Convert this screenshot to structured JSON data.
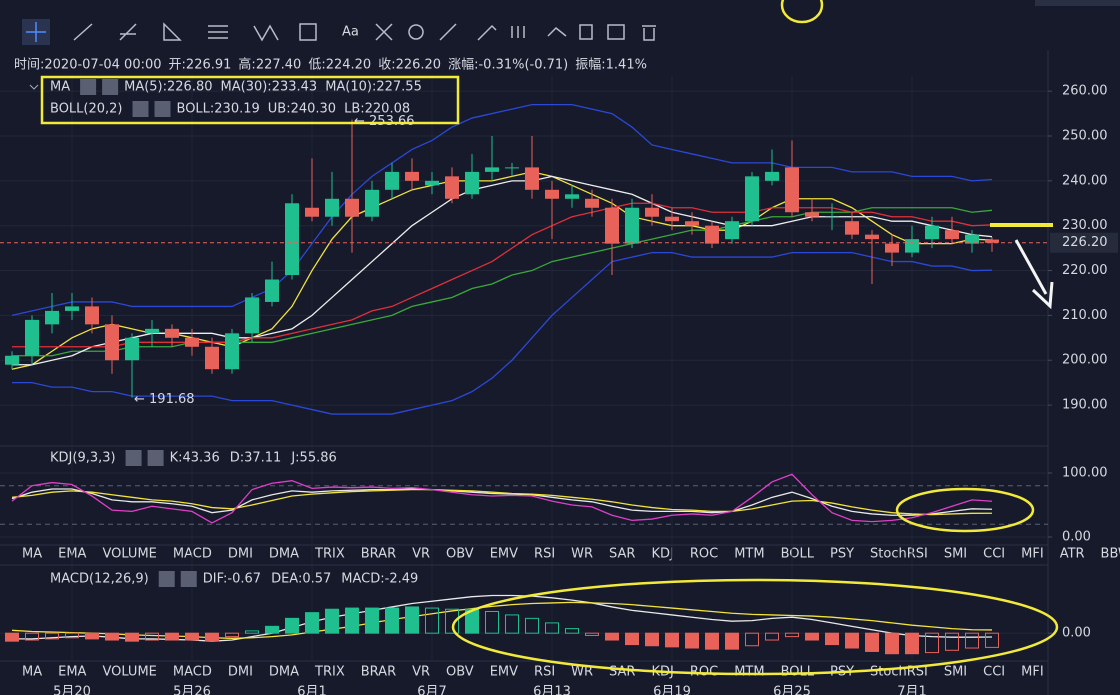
{
  "toolbar": {
    "text_tool": "Aa"
  },
  "info": [
    {
      "label": "时间:2020-07-04 00:00"
    },
    {
      "label": "开:",
      "value": "226.91"
    },
    {
      "label": "高:",
      "value": "227.40"
    },
    {
      "label": "低:",
      "value": "224.20"
    },
    {
      "label": "收:",
      "value": "226.20"
    },
    {
      "label": "涨幅:",
      "value": "-0.31%(-0.71)"
    },
    {
      "label": "振幅:",
      "value": "1.41%"
    }
  ],
  "tabs_top": {
    "items": [
      "MA",
      "EMA",
      "VOLUME",
      "MACD",
      "DMI",
      "DMA",
      "TRIX",
      "BRAR",
      "VR",
      "OBV",
      "EMV",
      "RSI",
      "WR",
      "SAR",
      "KDJ",
      "ROC",
      "MTM",
      "BOLL",
      "PSY",
      "StochRSI",
      "SMI",
      "CCI",
      "MFI",
      "ATR",
      "BBW"
    ],
    "active_index": 14
  },
  "tabs_bottom": {
    "items": [
      "MA",
      "EMA",
      "VOLUME",
      "MACD",
      "DMI",
      "DMA",
      "TRIX",
      "BRAR",
      "VR",
      "OBV",
      "EMV",
      "RSI",
      "WR",
      "SAR",
      "KDJ",
      "ROC",
      "MTM",
      "BOLL",
      "PSY",
      "StochRSI",
      "SMI",
      "CCI",
      "MFI"
    ],
    "active_index": 3
  },
  "chart_data": [
    {
      "type": "candlestick",
      "groups": [
        "MA",
        "BOLL(20,2)"
      ],
      "categories": [
        null,
        null,
        null,
        "5月20",
        null,
        null,
        null,
        null,
        null,
        "5月26",
        null,
        null,
        null,
        null,
        null,
        "6月1",
        null,
        null,
        null,
        null,
        null,
        "6月7",
        null,
        null,
        null,
        null,
        null,
        "6月13",
        null,
        null,
        null,
        null,
        null,
        "6月19",
        null,
        null,
        null,
        null,
        null,
        "6月25",
        null,
        null,
        null,
        null,
        null,
        "7月1",
        null,
        null,
        null,
        null
      ],
      "open": [
        199,
        201,
        208,
        211,
        212,
        208,
        200,
        206,
        207,
        205,
        203,
        198,
        206,
        213,
        219,
        234,
        232,
        236,
        232,
        238,
        242,
        239,
        241,
        237,
        242,
        243,
        243,
        238,
        236,
        236,
        234,
        226,
        234,
        232,
        231,
        230,
        227,
        231,
        240,
        243,
        233,
        232,
        231,
        228,
        226,
        224,
        227,
        229,
        226,
        226.91
      ],
      "high": [
        202,
        210,
        215,
        215,
        214,
        210,
        206,
        209,
        208,
        207,
        205,
        207,
        215,
        222,
        237,
        245,
        242,
        253.66,
        240,
        244,
        245,
        242,
        243,
        246,
        250,
        244,
        250,
        240,
        239,
        238,
        236,
        236,
        237,
        234,
        233,
        231,
        232,
        242,
        247,
        249,
        236,
        235,
        233,
        229,
        228,
        230,
        232,
        232,
        229,
        227.4
      ],
      "low": [
        198,
        199,
        206,
        209,
        206,
        197,
        191.68,
        203,
        203,
        201,
        197,
        197,
        204,
        212,
        218,
        231,
        230,
        224,
        231,
        236,
        238,
        237,
        235,
        236,
        240,
        241,
        236,
        227,
        234,
        232,
        219,
        225,
        230,
        229,
        228,
        225,
        226,
        230,
        239,
        232,
        231,
        229,
        227,
        217,
        221,
        223,
        225,
        226,
        224,
        224.2
      ],
      "close": [
        201,
        209,
        211,
        212,
        208,
        200,
        205,
        207,
        205,
        203,
        198,
        206,
        214,
        218,
        235,
        232,
        236,
        232,
        238,
        242,
        240,
        240,
        236,
        242,
        243,
        243,
        238,
        236,
        237,
        234,
        226,
        234,
        232,
        231,
        230,
        226,
        231,
        241,
        242,
        233,
        232,
        232,
        228,
        227,
        224,
        227,
        230,
        227,
        228,
        226.2
      ],
      "up_color": "#1fbf8f",
      "down_color": "#e8625a",
      "max_label": "← 253.66",
      "min_label": "← 191.68",
      "price_label": "226.20",
      "series": [
        {
          "name": "MA(5):226.80",
          "group": 0,
          "color": "#f2e33c",
          "values": [
            198,
            199,
            202,
            205,
            207,
            208,
            207,
            206,
            206,
            205,
            204,
            203,
            205,
            207,
            212,
            220,
            227,
            232,
            234,
            236,
            238,
            239,
            240,
            240,
            240,
            241,
            242,
            241,
            239,
            237,
            235,
            232,
            231,
            230,
            230,
            229,
            229,
            231,
            234,
            236,
            236,
            236,
            234,
            231,
            228,
            226,
            226,
            226,
            227,
            226.8
          ]
        },
        {
          "name": "MA(30):233.43",
          "group": 0,
          "color": "#3aa83a",
          "values": [
            201,
            201,
            201,
            202,
            202,
            202,
            203,
            203,
            203,
            204,
            204,
            204,
            204,
            204,
            205,
            206,
            207,
            208,
            209,
            210,
            212,
            213,
            214,
            216,
            217,
            219,
            220,
            222,
            223,
            224,
            225,
            226,
            227,
            228,
            229,
            229,
            230,
            231,
            232,
            232,
            233,
            233,
            233,
            234,
            234,
            234,
            234,
            234,
            233,
            233.43
          ]
        },
        {
          "name": "MA(10):227.55",
          "group": 0,
          "color": "#eeeeee",
          "values": [
            199,
            199,
            200,
            201,
            203,
            204,
            205,
            206,
            206,
            206,
            206,
            205,
            205,
            206,
            207,
            210,
            214,
            218,
            222,
            226,
            230,
            233,
            236,
            238,
            239,
            240,
            240,
            241,
            240,
            239,
            238,
            237,
            235,
            233,
            232,
            231,
            230,
            230,
            230,
            231,
            232,
            232,
            232,
            232,
            231,
            231,
            230,
            229,
            228,
            227.55
          ]
        },
        {
          "name": "BOLL:230.19",
          "group": 1,
          "color": "#e0303a",
          "values": [
            203,
            203,
            203,
            203,
            203,
            203,
            204,
            204,
            204,
            204,
            204,
            204,
            205,
            205,
            206,
            207,
            208,
            209,
            211,
            212,
            214,
            216,
            218,
            220,
            222,
            225,
            228,
            230,
            232,
            233,
            234,
            235,
            235,
            234,
            234,
            233,
            233,
            233,
            234,
            234,
            234,
            234,
            233,
            233,
            232,
            232,
            231,
            231,
            230,
            230.19
          ]
        },
        {
          "name": "UB:240.30",
          "group": 1,
          "color": "#2b48d6",
          "values": [
            210,
            211,
            212,
            213,
            213,
            213,
            212,
            212,
            212,
            212,
            212,
            212,
            214,
            216,
            220,
            226,
            232,
            237,
            241,
            244,
            247,
            249,
            252,
            254,
            255,
            256,
            257,
            257,
            257,
            256,
            255,
            252,
            248,
            247,
            246,
            245,
            244,
            244,
            244,
            243,
            243,
            243,
            242,
            242,
            242,
            241,
            241,
            241,
            240,
            240.3
          ]
        },
        {
          "name": "LB:220.08",
          "group": 1,
          "color": "#2b48d6",
          "values": [
            195,
            195,
            194,
            194,
            193,
            193,
            192,
            192,
            192,
            192,
            192,
            191,
            191,
            191,
            190,
            189,
            188,
            188,
            188,
            188,
            189,
            190,
            191,
            193,
            196,
            200,
            205,
            210,
            214,
            218,
            222,
            223,
            224,
            224,
            223,
            223,
            223,
            223,
            223,
            224,
            224,
            224,
            224,
            223,
            222,
            222,
            221,
            221,
            220,
            220.08
          ]
        }
      ],
      "ylim": [
        181.1,
        263.6
      ],
      "yticks": [
        {
          "value": 190,
          "label": "190.00"
        },
        {
          "value": 200,
          "label": "200.00"
        },
        {
          "value": 210,
          "label": "210.00"
        },
        {
          "value": 220,
          "label": "220.00"
        },
        {
          "value": 230,
          "label": "230.00"
        },
        {
          "value": 240,
          "label": "240.00"
        },
        {
          "value": 250,
          "label": "250.00"
        },
        {
          "value": 260,
          "label": "260.00"
        }
      ]
    },
    {
      "type": "line",
      "title": "KDJ(9,3,3)",
      "series": [
        {
          "name": "K:43.36",
          "color": "#e8e8e8",
          "values": [
            60,
            70,
            75,
            75,
            68,
            58,
            55,
            55,
            52,
            48,
            38,
            42,
            58,
            66,
            72,
            70,
            72,
            73,
            74,
            74,
            75,
            74,
            72,
            70,
            68,
            67,
            66,
            62,
            58,
            55,
            48,
            42,
            40,
            40,
            40,
            38,
            40,
            50,
            62,
            70,
            60,
            48,
            40,
            36,
            34,
            34,
            36,
            40,
            44,
            43.36
          ]
        },
        {
          "name": "D:37.11",
          "color": "#f2e33c",
          "values": [
            62,
            65,
            70,
            72,
            70,
            66,
            62,
            58,
            56,
            52,
            46,
            44,
            50,
            57,
            64,
            67,
            69,
            71,
            72,
            73,
            74,
            74,
            73,
            72,
            70,
            68,
            67,
            65,
            62,
            59,
            55,
            50,
            46,
            43,
            42,
            40,
            40,
            44,
            50,
            56,
            57,
            53,
            47,
            42,
            38,
            36,
            35,
            36,
            37,
            37.11
          ]
        },
        {
          "name": "J:55.86",
          "color": "#e040c8",
          "values": [
            56,
            80,
            85,
            82,
            64,
            42,
            40,
            48,
            44,
            40,
            22,
            38,
            74,
            84,
            88,
            76,
            78,
            77,
            78,
            76,
            77,
            74,
            70,
            66,
            64,
            65,
            64,
            56,
            50,
            47,
            34,
            26,
            28,
            34,
            36,
            34,
            40,
            62,
            86,
            98,
            66,
            38,
            26,
            24,
            26,
            30,
            38,
            48,
            58,
            55.86
          ]
        }
      ],
      "ref_lines": [
        80,
        20
      ],
      "ylim": [
        -12.5,
        140.6
      ],
      "yticks": [
        {
          "value": 0,
          "label": "0.00"
        },
        {
          "value": 100,
          "label": "100.00"
        }
      ]
    },
    {
      "type": "macd",
      "title": "MACD(12,26,9)",
      "series": [
        {
          "name": "DIF:-0.67",
          "color": "#e8e8e8",
          "values": [
            -1,
            -1,
            -0.8,
            -0.6,
            -0.5,
            -0.7,
            -1,
            -1,
            -1.1,
            -1.2,
            -1.4,
            -1.2,
            -0.6,
            0,
            1,
            2,
            2.8,
            3.4,
            4,
            4.6,
            5.2,
            5.6,
            6,
            6.4,
            6.6,
            6.6,
            6.5,
            6.2,
            5.8,
            5.3,
            4.6,
            4,
            3.6,
            3.2,
            2.8,
            2.4,
            2.1,
            2.2,
            2.6,
            2.8,
            2.4,
            1.8,
            1.2,
            0.6,
            0,
            -0.4,
            -0.6,
            -0.7,
            -0.7,
            -0.67
          ]
        },
        {
          "name": "DEA:0.57",
          "color": "#f2e33c",
          "values": [
            0.5,
            0.3,
            0.2,
            0.1,
            0,
            -0.1,
            -0.3,
            -0.4,
            -0.5,
            -0.6,
            -0.8,
            -0.9,
            -0.8,
            -0.6,
            -0.3,
            0.2,
            0.7,
            1.2,
            1.8,
            2.4,
            2.9,
            3.4,
            3.9,
            4.3,
            4.7,
            5,
            5.2,
            5.3,
            5.4,
            5.3,
            5.2,
            5,
            4.7,
            4.4,
            4.1,
            3.8,
            3.5,
            3.3,
            3.2,
            3.1,
            3,
            2.8,
            2.5,
            2.2,
            1.8,
            1.4,
            1.1,
            0.8,
            0.6,
            0.57
          ]
        },
        {
          "name": "MACD:-2.49",
          "color": "#e8625a",
          "bars": true,
          "up_color": "#1fbf8f",
          "down_color": "#e8625a",
          "values": [
            -1.4,
            -1.2,
            -1,
            -0.8,
            -1,
            -1.2,
            -1.4,
            -1.2,
            -1.2,
            -1.2,
            -1.4,
            -0.6,
            0.4,
            1.2,
            2.6,
            3.6,
            4.2,
            4.4,
            4.4,
            4.4,
            4.6,
            4.4,
            4.2,
            4.2,
            3.8,
            3.2,
            2.6,
            1.8,
            0.8,
            -0.4,
            -1.2,
            -2,
            -2.2,
            -2.4,
            -2.6,
            -2.8,
            -2.8,
            -2.2,
            -1.2,
            -0.6,
            -1.2,
            -2,
            -2.6,
            -3.2,
            -3.6,
            -3.6,
            -3.4,
            -3,
            -2.6,
            -2.49
          ]
        }
      ],
      "ylim": [
        -4.7,
        11.6
      ],
      "yticks": [
        {
          "value": 0,
          "label": "0.00"
        }
      ]
    }
  ]
}
